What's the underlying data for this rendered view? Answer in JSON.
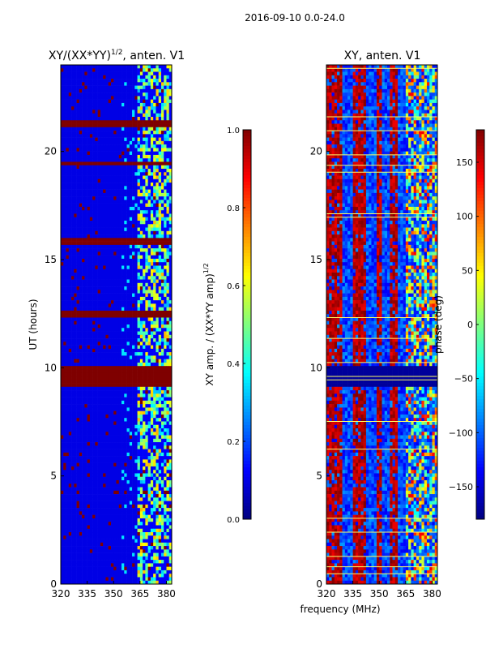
{
  "figure": {
    "suptitle": "2016-09-10 0.0-24.0",
    "colors": {
      "jet": [
        "#00007f",
        "#0000ff",
        "#007fff",
        "#00ffff",
        "#7fff7f",
        "#ffff00",
        "#ff7f00",
        "#ff0000",
        "#7f0000"
      ],
      "grid_line": "#ffff66"
    }
  },
  "chart_data": [
    {
      "type": "heatmap",
      "title": "XY/(XX*YY)",
      "title_exponent": "1/2",
      "title_suffix": ", anten. V1",
      "xlabel": "",
      "ylabel": "UT (hours)",
      "x_ticks": [
        320,
        335,
        350,
        365,
        380
      ],
      "x_tick_labels": [
        "320",
        "335",
        "350",
        "365",
        "380"
      ],
      "y_ticks": [
        0,
        5,
        10,
        15,
        20
      ],
      "y_tick_labels": [
        "0",
        "5",
        "10",
        "15",
        "20"
      ],
      "xlim": [
        320,
        383
      ],
      "ylim": [
        0,
        24
      ],
      "colorbar": {
        "label": "XY amp. / (XX*YY amp)",
        "label_exponent": "1/2",
        "range": [
          0.0,
          1.0
        ],
        "ticks": [
          0.0,
          0.2,
          0.4,
          0.6,
          0.8,
          1.0
        ],
        "tick_labels": [
          "0.0",
          "0.2",
          "0.4",
          "0.6",
          "0.8",
          "1.0"
        ]
      },
      "saturated_bands": [
        {
          "from": 9.1,
          "to": 10.0,
          "value": 1.0
        },
        {
          "from": 12.3,
          "to": 12.6,
          "value": 1.0
        },
        {
          "from": 15.7,
          "to": 16.0,
          "value": 1.0
        },
        {
          "from": 19.3,
          "to": 19.5,
          "value": 1.0
        },
        {
          "from": 21.1,
          "to": 21.4,
          "value": 1.0
        }
      ],
      "bright_region": {
        "freq_from": 363,
        "freq_to": 383,
        "value_range": [
          0.3,
          0.7
        ]
      },
      "background_value": 0.1
    },
    {
      "type": "heatmap",
      "title": "XY, anten. V1",
      "xlabel": "frequency (MHz)",
      "ylabel": "",
      "x_ticks": [
        320,
        335,
        350,
        365,
        380
      ],
      "x_tick_labels": [
        "320",
        "335",
        "350",
        "365",
        "380"
      ],
      "y_ticks": [
        0,
        5,
        10,
        15,
        20
      ],
      "y_tick_labels": [
        "0",
        "5",
        "10",
        "15",
        "20"
      ],
      "xlim": [
        320,
        383
      ],
      "ylim": [
        0,
        24
      ],
      "colorbar": {
        "label": "phase (deg)",
        "range": [
          -180,
          180
        ],
        "ticks": [
          -150,
          -100,
          -50,
          0,
          50,
          100,
          150
        ],
        "tick_labels": [
          "−150",
          "−100",
          "−50",
          "0",
          "50",
          "100",
          "150"
        ]
      },
      "red_phase_columns_mhz": [
        322,
        327,
        337,
        341,
        350,
        358
      ],
      "blue_band": {
        "from": 9.1,
        "to": 10.0,
        "value": -170
      },
      "background_value": -140
    }
  ]
}
